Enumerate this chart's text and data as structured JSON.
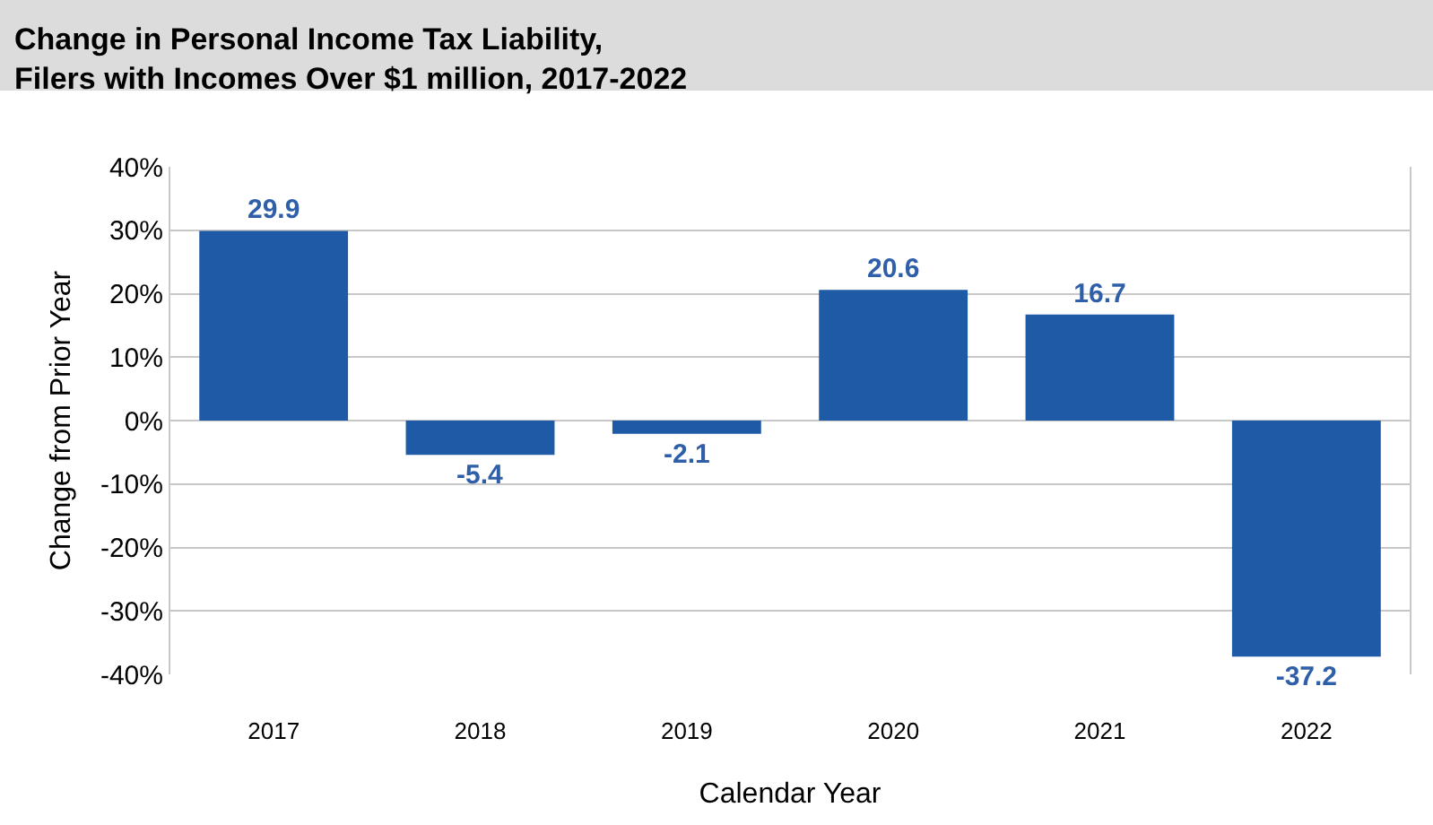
{
  "chart_data": {
    "type": "bar",
    "title": "Change in Personal Income Tax Liability,\nFilers with Incomes Over $1 million, 2017-2022",
    "xlabel": "Calendar Year",
    "ylabel": "Change from Prior Year",
    "categories": [
      "2017",
      "2018",
      "2019",
      "2020",
      "2021",
      "2022"
    ],
    "values": [
      29.9,
      -5.4,
      -2.1,
      20.6,
      16.7,
      -37.2
    ],
    "color": "#1f5aa6",
    "ylim": [
      -40,
      40
    ],
    "yticks": [
      {
        "value": -40,
        "label": "-40%"
      },
      {
        "value": -30,
        "label": "-30%"
      },
      {
        "value": -20,
        "label": "-20%"
      },
      {
        "value": -10,
        "label": "-10%"
      },
      {
        "value": 0,
        "label": "0%"
      },
      {
        "value": 10,
        "label": "10%"
      },
      {
        "value": 20,
        "label": "20%"
      },
      {
        "value": 30,
        "label": "30%"
      },
      {
        "value": 40,
        "label": "40%"
      }
    ],
    "grid": "y",
    "data_labels": true,
    "legend": false
  }
}
